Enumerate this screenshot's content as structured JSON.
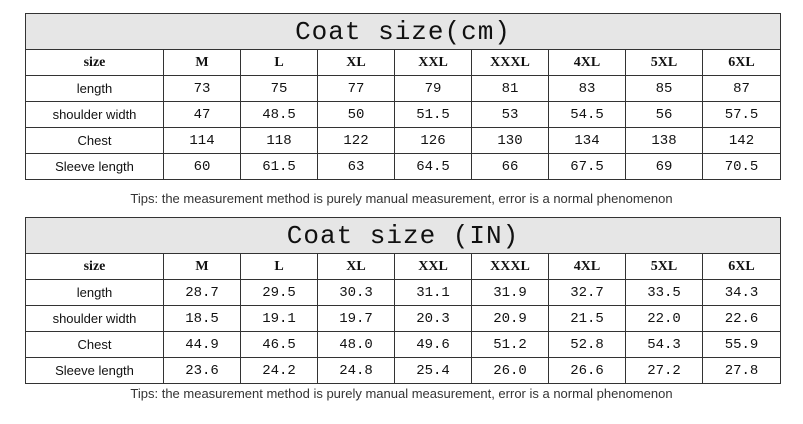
{
  "tables": [
    {
      "title": "Coat size(cm)",
      "header": [
        "size",
        "M",
        "L",
        "XL",
        "XXL",
        "XXXL",
        "4XL",
        "5XL",
        "6XL"
      ],
      "rows": [
        [
          "length",
          "73",
          "75",
          "77",
          "79",
          "81",
          "83",
          "85",
          "87"
        ],
        [
          "shoulder width",
          "47",
          "48.5",
          "50",
          "51.5",
          "53",
          "54.5",
          "56",
          "57.5"
        ],
        [
          "Chest",
          "114",
          "118",
          "122",
          "126",
          "130",
          "134",
          "138",
          "142"
        ],
        [
          "Sleeve length",
          "60",
          "61.5",
          "63",
          "64.5",
          "66",
          "67.5",
          "69",
          "70.5"
        ]
      ],
      "tips": "Tips: the measurement method is purely manual measurement, error is a normal phenomenon"
    },
    {
      "title": "Coat size (IN)",
      "header": [
        "size",
        "M",
        "L",
        "XL",
        "XXL",
        "XXXL",
        "4XL",
        "5XL",
        "6XL"
      ],
      "rows": [
        [
          "length",
          "28.7",
          "29.5",
          "30.3",
          "31.1",
          "31.9",
          "32.7",
          "33.5",
          "34.3"
        ],
        [
          "shoulder width",
          "18.5",
          "19.1",
          "19.7",
          "20.3",
          "20.9",
          "21.5",
          "22.0",
          "22.6"
        ],
        [
          "Chest",
          "44.9",
          "46.5",
          "48.0",
          "49.6",
          "51.2",
          "52.8",
          "54.3",
          "55.9"
        ],
        [
          "Sleeve length",
          "23.6",
          "24.2",
          "24.8",
          "25.4",
          "26.0",
          "26.6",
          "27.2",
          "27.8"
        ]
      ],
      "tips": "Tips: the measurement method is purely manual measurement, error is a normal phenomenon"
    }
  ]
}
